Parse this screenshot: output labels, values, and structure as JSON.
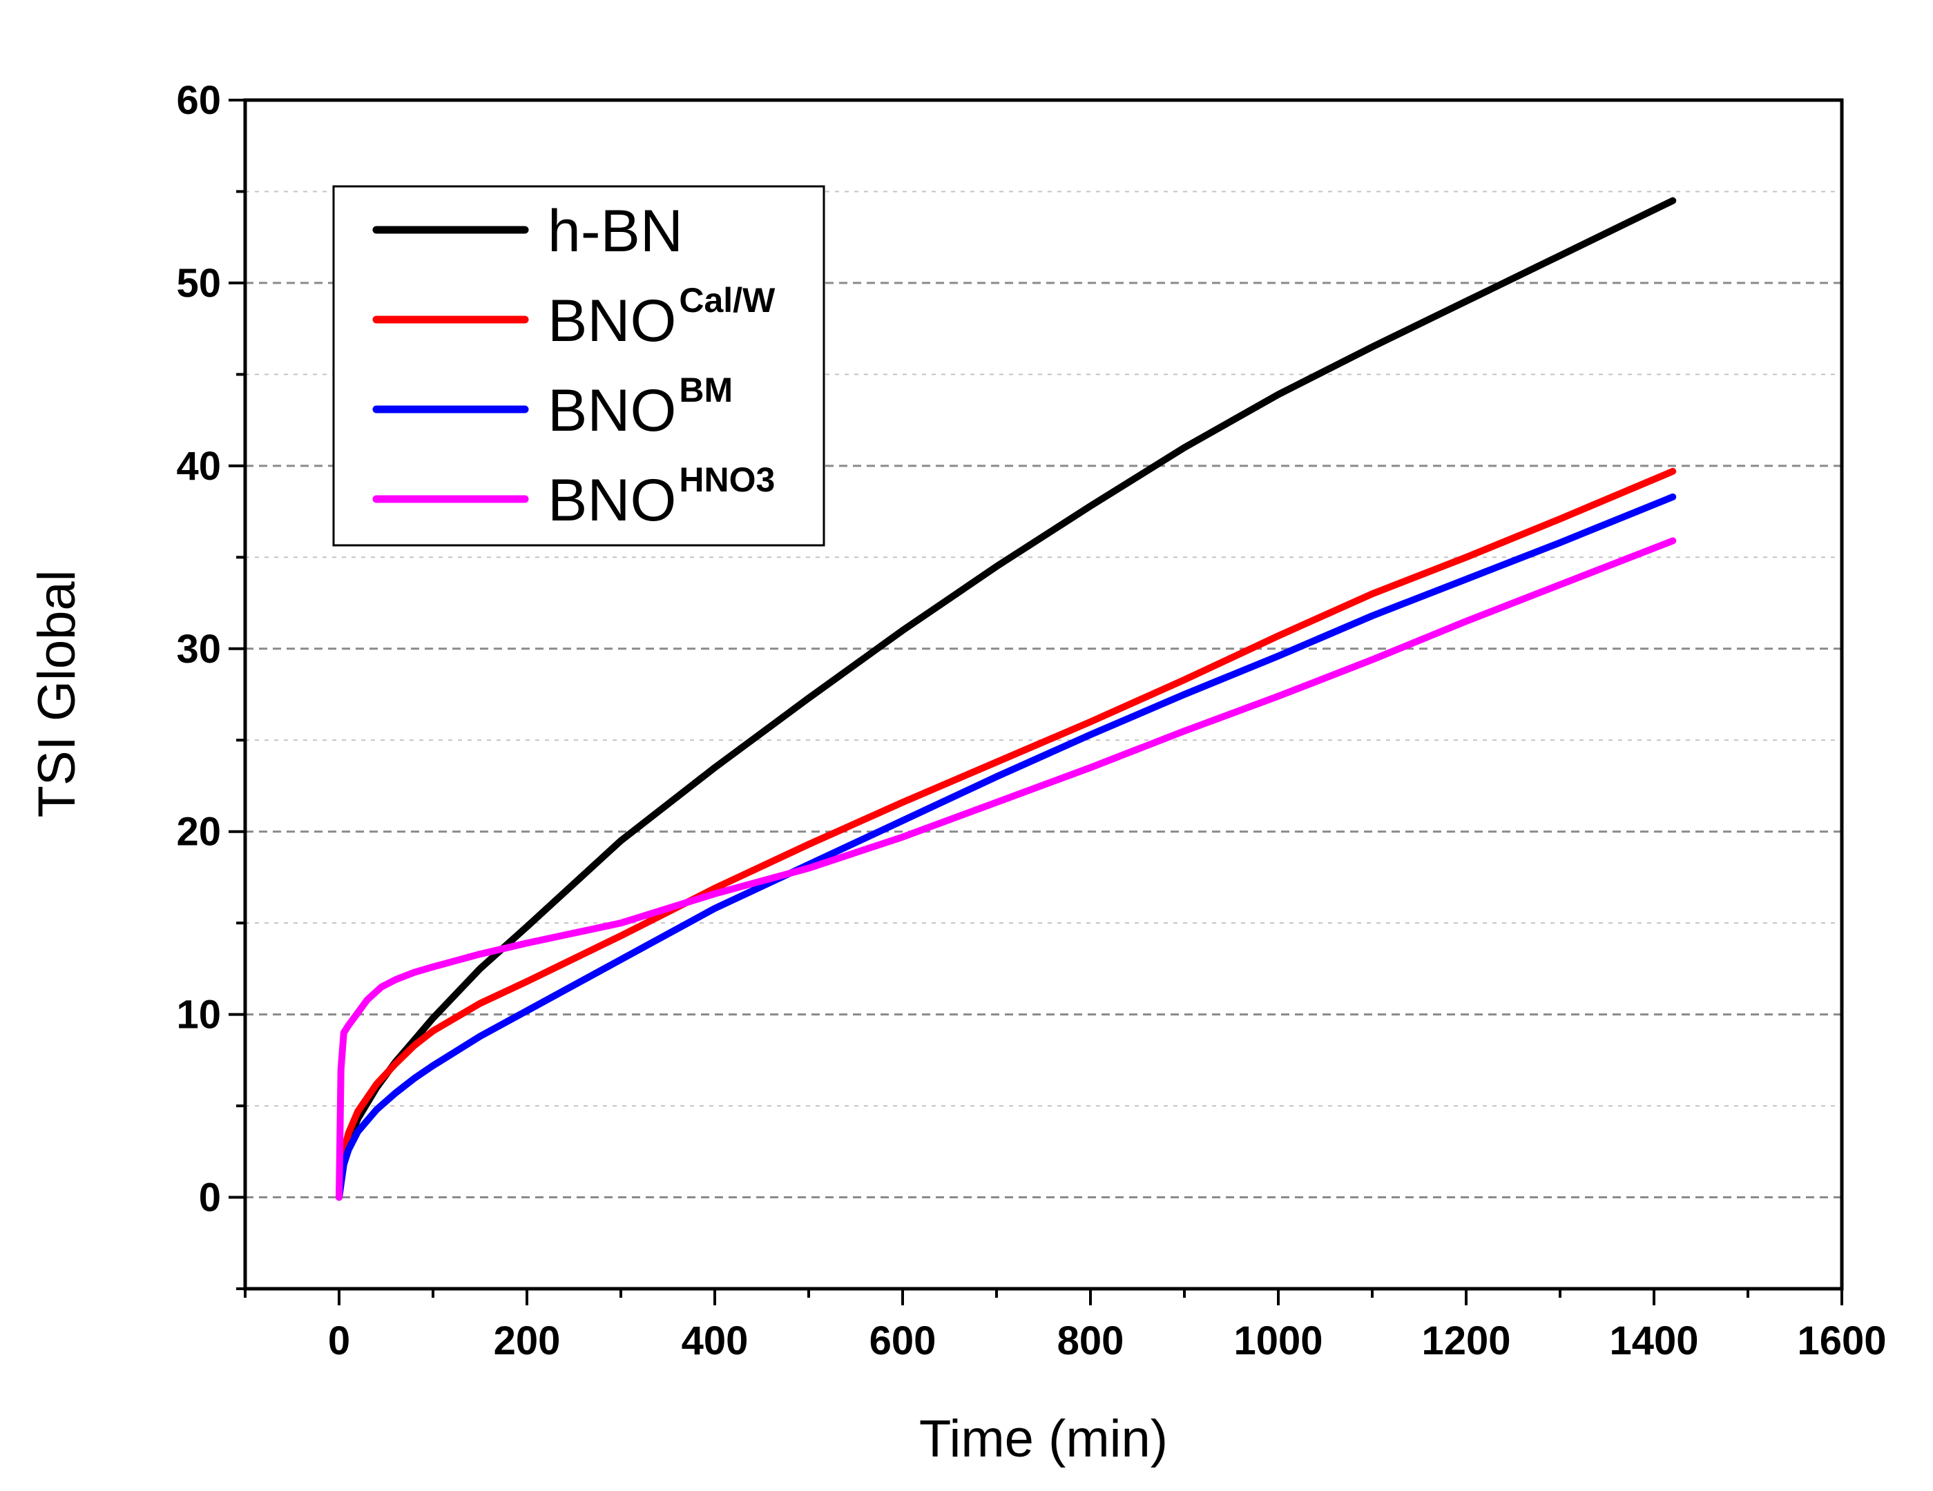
{
  "chart_data": {
    "type": "line",
    "title": "",
    "xlabel": "Time (min)",
    "ylabel": "TSI Global",
    "xlim": [
      -100,
      1600
    ],
    "ylim": [
      -5,
      60
    ],
    "xticks": [
      0,
      200,
      400,
      600,
      800,
      1000,
      1200,
      1400,
      1600
    ],
    "yticks": [
      0,
      10,
      20,
      30,
      40,
      50,
      60
    ],
    "xtick_labels": [
      "0",
      "200",
      "400",
      "600",
      "800",
      "1000",
      "1200",
      "1400",
      "1600"
    ],
    "ytick_labels": [
      "0",
      "10",
      "20",
      "30",
      "40",
      "50",
      "60"
    ],
    "grid": "horizontal dashed",
    "legend_position": "top-left",
    "series": [
      {
        "name": "h-BN",
        "base": "h-BN",
        "sup": "",
        "color": "#000000",
        "x": [
          0,
          5,
          10,
          20,
          40,
          60,
          80,
          100,
          150,
          200,
          300,
          400,
          500,
          600,
          700,
          800,
          900,
          1000,
          1100,
          1200,
          1300,
          1420
        ],
        "y": [
          0,
          2.0,
          3.0,
          4.3,
          6.0,
          7.4,
          8.6,
          9.8,
          12.5,
          14.8,
          19.5,
          23.5,
          27.3,
          31.0,
          34.5,
          37.8,
          41.0,
          43.9,
          46.5,
          49.0,
          51.5,
          54.5
        ]
      },
      {
        "name": "BNO Cal/W",
        "base": "BNO",
        "sup": "Cal/W",
        "color": "#ff0000",
        "x": [
          0,
          5,
          10,
          20,
          40,
          60,
          80,
          100,
          150,
          200,
          300,
          400,
          500,
          600,
          700,
          800,
          900,
          1000,
          1100,
          1200,
          1300,
          1420
        ],
        "y": [
          0,
          2.5,
          3.5,
          4.7,
          6.2,
          7.3,
          8.3,
          9.1,
          10.6,
          11.8,
          14.3,
          16.9,
          19.3,
          21.6,
          23.8,
          26.0,
          28.3,
          30.7,
          33.0,
          35.0,
          37.1,
          39.7
        ]
      },
      {
        "name": "BNO BM",
        "base": "BNO",
        "sup": "BM",
        "color": "#0000ff",
        "x": [
          0,
          5,
          10,
          20,
          40,
          60,
          80,
          100,
          150,
          200,
          300,
          400,
          500,
          600,
          700,
          800,
          900,
          1000,
          1100,
          1200,
          1300,
          1420
        ],
        "y": [
          0,
          1.8,
          2.6,
          3.6,
          4.8,
          5.7,
          6.5,
          7.2,
          8.8,
          10.2,
          13.0,
          15.8,
          18.2,
          20.6,
          23.0,
          25.3,
          27.5,
          29.6,
          31.8,
          33.8,
          35.8,
          38.3
        ]
      },
      {
        "name": "BNO HNO3",
        "base": "BNO",
        "sup": "HNO3",
        "color": "#ff00ff",
        "x": [
          0,
          2,
          5,
          10,
          20,
          30,
          45,
          60,
          80,
          100,
          150,
          200,
          300,
          400,
          500,
          600,
          700,
          800,
          900,
          1000,
          1100,
          1200,
          1300,
          1420
        ],
        "y": [
          0,
          7.0,
          9.0,
          9.4,
          10.1,
          10.8,
          11.5,
          11.9,
          12.3,
          12.6,
          13.3,
          13.9,
          15.0,
          16.6,
          18.0,
          19.7,
          21.6,
          23.5,
          25.5,
          27.4,
          29.4,
          31.5,
          33.5,
          35.9
        ]
      }
    ]
  }
}
